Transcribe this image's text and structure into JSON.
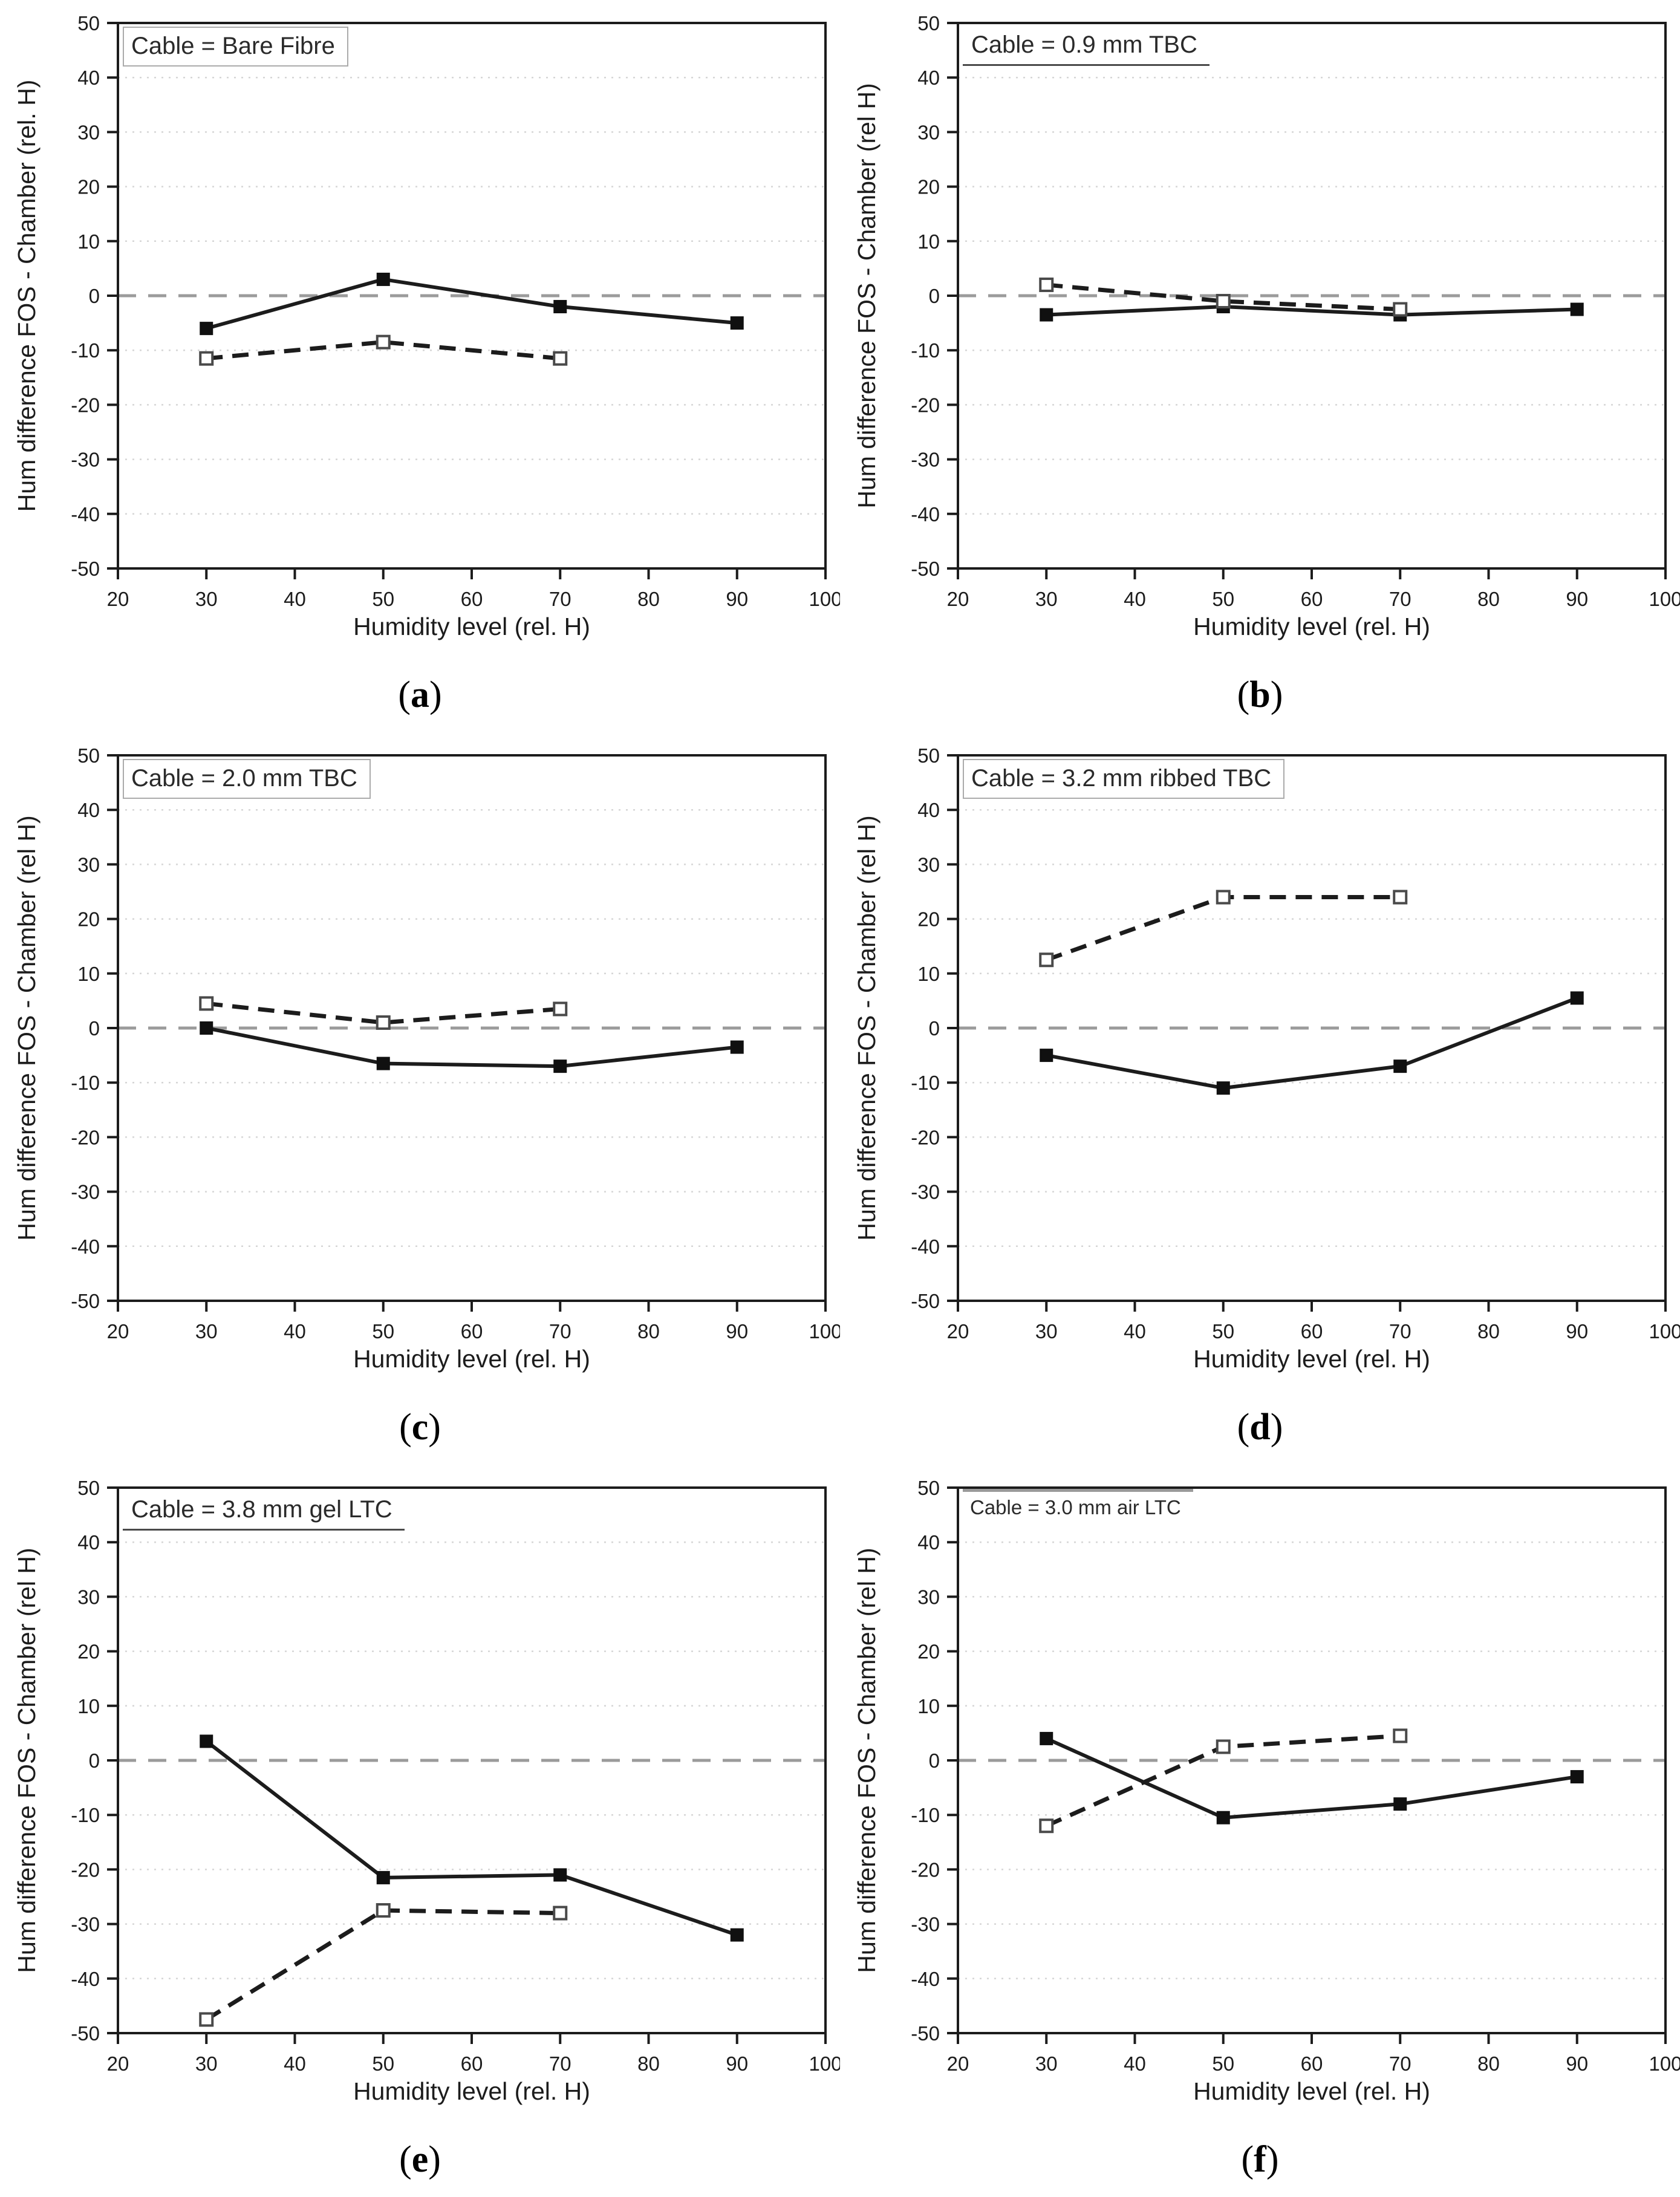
{
  "figure": {
    "background": "#ffffff",
    "text_color": "#1c1c1c",
    "zero_line_color": "#9b9b9b",
    "grid_color": "#d6d6d6"
  },
  "chart_data": [
    {
      "type": "line",
      "panel_id": "a",
      "title": "Cable = Bare Fibre",
      "xlabel": "Humidity level (rel. H)",
      "ylabel": "Hum difference FOS - Chamber (rel. H)",
      "xlim": [
        20,
        100
      ],
      "ylim": [
        -50,
        50
      ],
      "xticks": [
        20,
        30,
        40,
        50,
        60,
        70,
        80,
        90,
        100
      ],
      "yticks": [
        -50,
        -40,
        -30,
        -20,
        -10,
        0,
        10,
        20,
        30,
        40,
        50
      ],
      "zero_line": true,
      "grid": "horizontal-dotted",
      "legend": "none",
      "series": [
        {
          "name": "solid-filled-square",
          "marker": "filled-square",
          "line": "solid",
          "x": [
            30,
            50,
            70,
            90
          ],
          "y": [
            -6,
            3,
            -2,
            -5
          ]
        },
        {
          "name": "dashed-open-square",
          "marker": "open-square",
          "line": "dashed",
          "x": [
            30,
            50,
            70
          ],
          "y": [
            -11.5,
            -8.5,
            -11.5
          ]
        }
      ],
      "caption_open": "(",
      "caption_letter": "a",
      "caption_close": ")"
    },
    {
      "type": "line",
      "panel_id": "b",
      "title": "Cable = 0.9 mm TBC",
      "xlabel": "Humidity level (rel. H)",
      "ylabel": "Hum difference FOS - Chamber (rel H)",
      "xlim": [
        20,
        100
      ],
      "ylim": [
        -50,
        50
      ],
      "xticks": [
        20,
        30,
        40,
        50,
        60,
        70,
        80,
        90,
        100
      ],
      "yticks": [
        -50,
        -40,
        -30,
        -20,
        -10,
        0,
        10,
        20,
        30,
        40,
        50
      ],
      "zero_line": true,
      "grid": "horizontal-dotted",
      "legend": "none",
      "series": [
        {
          "name": "solid-filled-square",
          "marker": "filled-square",
          "line": "solid",
          "x": [
            30,
            50,
            70,
            90
          ],
          "y": [
            -3.5,
            -2,
            -3.5,
            -2.5
          ]
        },
        {
          "name": "dashed-open-square",
          "marker": "open-square",
          "line": "dashed",
          "x": [
            30,
            50,
            70
          ],
          "y": [
            2,
            -1,
            -2.5
          ]
        }
      ],
      "caption_open": "(",
      "caption_letter": "b",
      "caption_close": ")"
    },
    {
      "type": "line",
      "panel_id": "c",
      "title": "Cable = 2.0 mm TBC",
      "xlabel": "Humidity level (rel. H)",
      "ylabel": "Hum difference FOS - Chamber (rel H)",
      "xlim": [
        20,
        100
      ],
      "ylim": [
        -50,
        50
      ],
      "xticks": [
        20,
        30,
        40,
        50,
        60,
        70,
        80,
        90,
        100
      ],
      "yticks": [
        -50,
        -40,
        -30,
        -20,
        -10,
        0,
        10,
        20,
        30,
        40,
        50
      ],
      "zero_line": true,
      "grid": "horizontal-dotted",
      "legend": "none",
      "series": [
        {
          "name": "solid-filled-square",
          "marker": "filled-square",
          "line": "solid",
          "x": [
            30,
            50,
            70,
            90
          ],
          "y": [
            0,
            -6.5,
            -7,
            -3.5
          ]
        },
        {
          "name": "dashed-open-square",
          "marker": "open-square",
          "line": "dashed",
          "x": [
            30,
            50,
            70
          ],
          "y": [
            4.5,
            1,
            3.5
          ]
        }
      ],
      "caption_open": "(",
      "caption_letter": "c",
      "caption_close": ")"
    },
    {
      "type": "line",
      "panel_id": "d",
      "title": "Cable = 3.2 mm ribbed TBC",
      "xlabel": "Humidity level (rel. H)",
      "ylabel": "Hum difference FOS - Chamber (rel H)",
      "xlim": [
        20,
        100
      ],
      "ylim": [
        -50,
        50
      ],
      "xticks": [
        20,
        30,
        40,
        50,
        60,
        70,
        80,
        90,
        100
      ],
      "yticks": [
        -50,
        -40,
        -30,
        -20,
        -10,
        0,
        10,
        20,
        30,
        40,
        50
      ],
      "zero_line": true,
      "grid": "horizontal-dotted",
      "legend": "none",
      "series": [
        {
          "name": "solid-filled-square",
          "marker": "filled-square",
          "line": "solid",
          "x": [
            30,
            50,
            70,
            90
          ],
          "y": [
            -5,
            -11,
            -7,
            5.5
          ]
        },
        {
          "name": "dashed-open-square",
          "marker": "open-square",
          "line": "dashed",
          "x": [
            30,
            50,
            70
          ],
          "y": [
            12.5,
            24,
            24
          ]
        }
      ],
      "caption_open": "(",
      "caption_letter": "d",
      "caption_close": ")"
    },
    {
      "type": "line",
      "panel_id": "e",
      "title": "Cable = 3.8 mm gel LTC",
      "xlabel": "Humidity level (rel. H)",
      "ylabel": "Hum difference FOS - Chamber (rel H)",
      "xlim": [
        20,
        100
      ],
      "ylim": [
        -50,
        50
      ],
      "xticks": [
        20,
        30,
        40,
        50,
        60,
        70,
        80,
        90,
        100
      ],
      "yticks": [
        -50,
        -40,
        -30,
        -20,
        -10,
        0,
        10,
        20,
        30,
        40,
        50
      ],
      "zero_line": true,
      "grid": "horizontal-dotted",
      "legend": "none",
      "series": [
        {
          "name": "solid-filled-square",
          "marker": "filled-square",
          "line": "solid",
          "x": [
            30,
            50,
            70,
            90
          ],
          "y": [
            3.5,
            -21.5,
            -21,
            -32
          ]
        },
        {
          "name": "dashed-open-square",
          "marker": "open-square",
          "line": "dashed",
          "x": [
            30,
            50,
            70
          ],
          "y": [
            -47.5,
            -27.5,
            -28
          ]
        }
      ],
      "caption_open": "(",
      "caption_letter": "e",
      "caption_close": ")"
    },
    {
      "type": "line",
      "panel_id": "f",
      "title": "Cable = 3.0 mm air LTC",
      "xlabel": "Humidity level (rel. H)",
      "ylabel": "Hum difference FOS - Chamber (rel H)",
      "xlim": [
        20,
        100
      ],
      "ylim": [
        -50,
        50
      ],
      "xticks": [
        20,
        30,
        40,
        50,
        60,
        70,
        80,
        90,
        100
      ],
      "yticks": [
        -50,
        -40,
        -30,
        -20,
        -10,
        0,
        10,
        20,
        30,
        40,
        50
      ],
      "zero_line": true,
      "grid": "horizontal-dotted",
      "legend": "none",
      "series": [
        {
          "name": "solid-filled-square",
          "marker": "filled-square",
          "line": "solid",
          "x": [
            30,
            50,
            70,
            90
          ],
          "y": [
            4,
            -10.5,
            -8,
            -3
          ]
        },
        {
          "name": "dashed-open-square",
          "marker": "open-square",
          "line": "dashed",
          "x": [
            30,
            50,
            70
          ],
          "y": [
            -12,
            2.5,
            4.5
          ]
        }
      ],
      "caption_open": "(",
      "caption_letter": "f",
      "caption_close": ")"
    }
  ]
}
